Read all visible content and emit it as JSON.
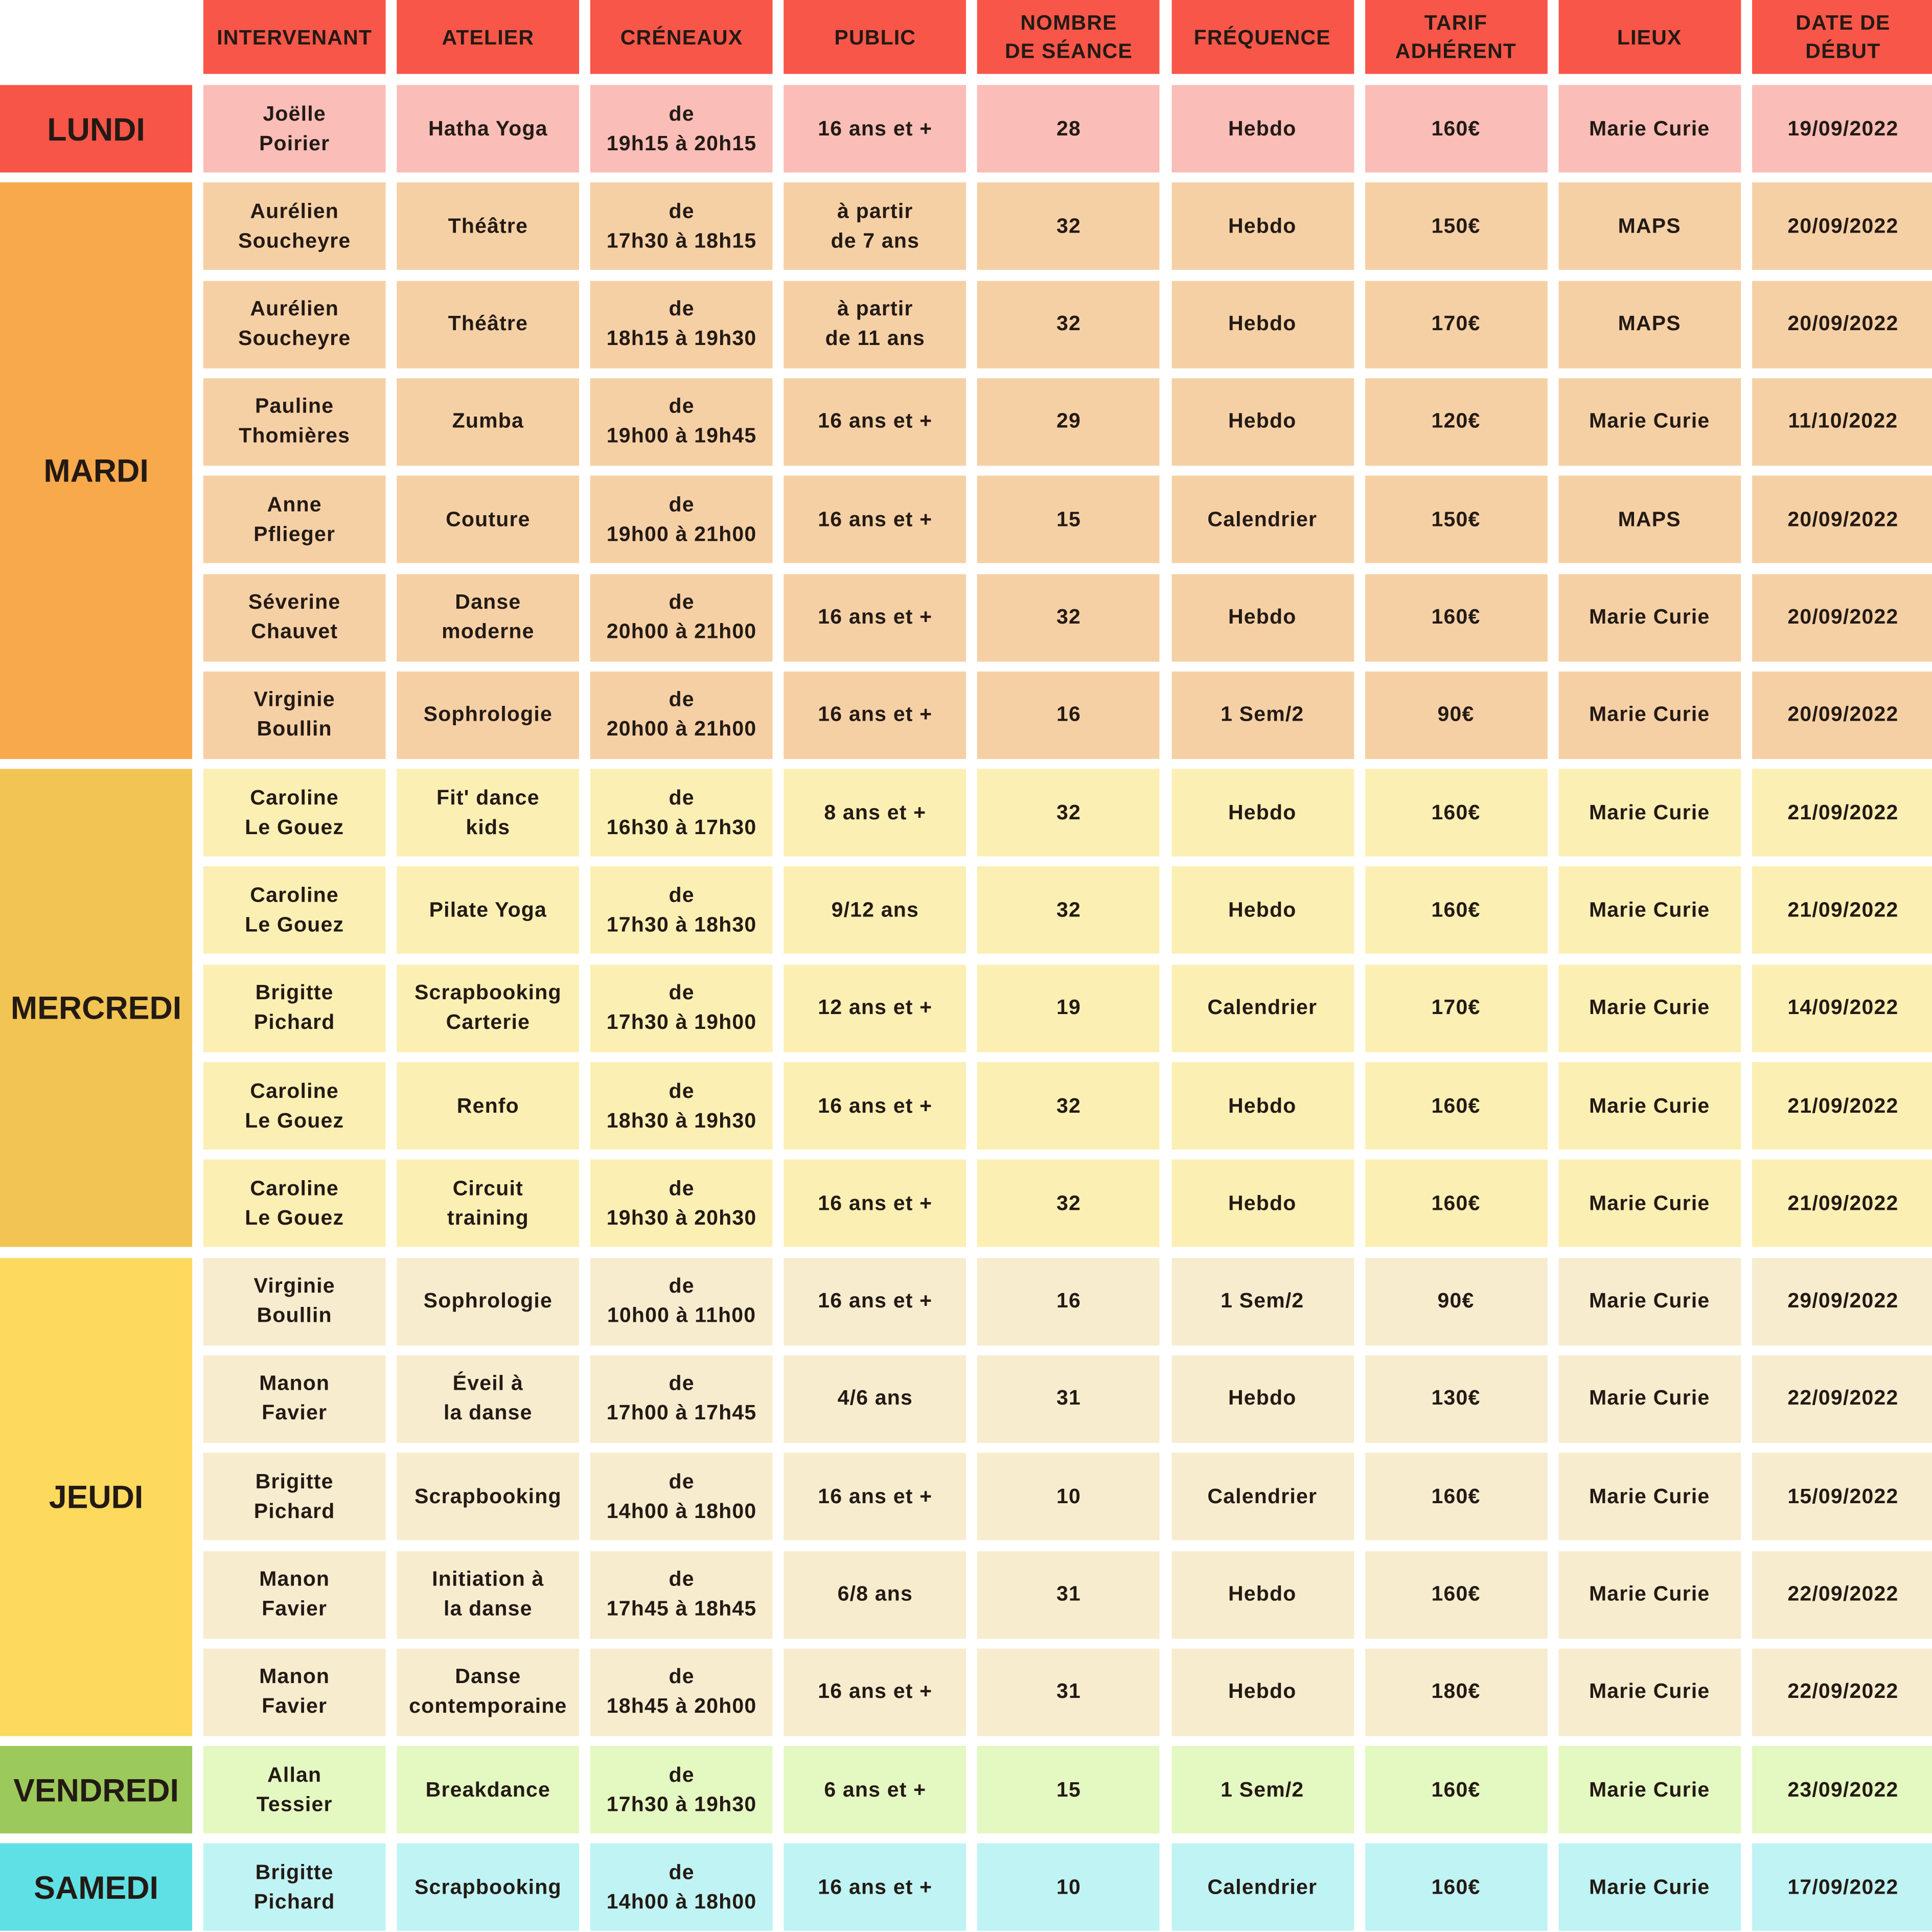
{
  "headers": [
    "Intervenant",
    "Atelier",
    "Créneaux",
    "Public",
    "Nombre\nde séance",
    "Fréquence",
    "Tarif\nadhérent",
    "Lieux",
    "Date de\ndébut"
  ],
  "days": [
    {
      "name": "LUNDI",
      "color": "#f75548",
      "cell_color": "#fbbdb7",
      "rows": [
        [
          "Joëlle\nPoirier",
          "Hatha Yoga",
          "de\n19h15 à 20h15",
          "16 ans et +",
          "28",
          "Hebdo",
          "160€",
          "Marie Curie",
          "19/09/2022"
        ]
      ]
    },
    {
      "name": "MARDI",
      "color": "#f7a94c",
      "cell_color": "#f6d0a5",
      "rows": [
        [
          "Aurélien\nSoucheyre",
          "Théâtre",
          "de\n17h30 à 18h15",
          "à partir\nde 7 ans",
          "32",
          "Hebdo",
          "150€",
          "MAPS",
          "20/09/2022"
        ],
        [
          "Aurélien\nSoucheyre",
          "Théâtre",
          "de\n18h15 à 19h30",
          "à partir\nde 11 ans",
          "32",
          "Hebdo",
          "170€",
          "MAPS",
          "20/09/2022"
        ],
        [
          "Pauline\nThomières",
          "Zumba",
          "de\n19h00 à 19h45",
          "16 ans et +",
          "29",
          "Hebdo",
          "120€",
          "Marie Curie",
          "11/10/2022"
        ],
        [
          "Anne\nPflieger",
          "Couture",
          "de\n19h00 à 21h00",
          "16 ans et +",
          "15",
          "Calendrier",
          "150€",
          "MAPS",
          "20/09/2022"
        ],
        [
          "Séverine\nChauvet",
          "Danse\nmoderne",
          "de\n20h00 à 21h00",
          "16 ans et +",
          "32",
          "Hebdo",
          "160€",
          "Marie Curie",
          "20/09/2022"
        ],
        [
          "Virginie\nBoullin",
          "Sophrologie",
          "de\n20h00 à 21h00",
          "16 ans et +",
          "16",
          "1 Sem/2",
          "90€",
          "Marie Curie",
          "20/09/2022"
        ]
      ]
    },
    {
      "name": "MERCREDI",
      "color": "#f2c453",
      "cell_color": "#fcefb4",
      "rows": [
        [
          "Caroline\nLe Gouez",
          "Fit' dance\nkids",
          "de\n16h30 à 17h30",
          "8 ans et +",
          "32",
          "Hebdo",
          "160€",
          "Marie Curie",
          "21/09/2022"
        ],
        [
          "Caroline\nLe Gouez",
          "Pilate Yoga",
          "de\n17h30 à 18h30",
          "9/12 ans",
          "32",
          "Hebdo",
          "160€",
          "Marie Curie",
          "21/09/2022"
        ],
        [
          "Brigitte\nPichard",
          "Scrapbooking\nCarterie",
          "de\n17h30 à 19h00",
          "12 ans et +",
          "19",
          "Calendrier",
          "170€",
          "Marie Curie",
          "14/09/2022"
        ],
        [
          "Caroline\nLe Gouez",
          "Renfo",
          "de\n18h30 à 19h30",
          "16 ans et +",
          "32",
          "Hebdo",
          "160€",
          "Marie Curie",
          "21/09/2022"
        ],
        [
          "Caroline\nLe Gouez",
          "Circuit\ntraining",
          "de\n19h30 à 20h30",
          "16 ans et +",
          "32",
          "Hebdo",
          "160€",
          "Marie Curie",
          "21/09/2022"
        ]
      ]
    },
    {
      "name": "JEUDI",
      "color": "#fdd95d",
      "cell_color": "#f7ecce",
      "rows": [
        [
          "Virginie\nBoullin",
          "Sophrologie",
          "de\n10h00 à 11h00",
          "16 ans et +",
          "16",
          "1 Sem/2",
          "90€",
          "Marie Curie",
          "29/09/2022"
        ],
        [
          "Manon\nFavier",
          "Éveil à\nla danse",
          "de\n17h00 à 17h45",
          "4/6 ans",
          "31",
          "Hebdo",
          "130€",
          "Marie Curie",
          "22/09/2022"
        ],
        [
          "Brigitte\nPichard",
          "Scrapbooking",
          "de\n14h00 à 18h00",
          "16 ans et +",
          "10",
          "Calendrier",
          "160€",
          "Marie Curie",
          "15/09/2022"
        ],
        [
          "Manon\nFavier",
          "Initiation à\nla danse",
          "de\n17h45 à 18h45",
          "6/8 ans",
          "31",
          "Hebdo",
          "160€",
          "Marie Curie",
          "22/09/2022"
        ],
        [
          "Manon\nFavier",
          "Danse\ncontemporaine",
          "de\n18h45 à 20h00",
          "16 ans et +",
          "31",
          "Hebdo",
          "180€",
          "Marie Curie",
          "22/09/2022"
        ]
      ]
    },
    {
      "name": "VENDREDI",
      "color": "#9cc95b",
      "cell_color": "#e4f8c1",
      "rows": [
        [
          "Allan\nTessier",
          "Breakdance",
          "de\n17h30 à 19h30",
          "6 ans et +",
          "15",
          "1 Sem/2",
          "160€",
          "Marie Curie",
          "23/09/2022"
        ]
      ]
    },
    {
      "name": "SAMEDI",
      "color": "#5fe0e5",
      "cell_color": "#bff3f4",
      "rows": [
        [
          "Brigitte\nPichard",
          "Scrapbooking",
          "de\n14h00 à 18h00",
          "16 ans et +",
          "10",
          "Calendrier",
          "160€",
          "Marie Curie",
          "17/09/2022"
        ]
      ]
    }
  ]
}
